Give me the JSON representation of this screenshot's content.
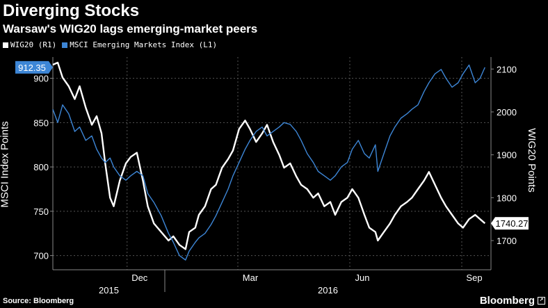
{
  "header": {
    "title": "Diverging Stocks",
    "subtitle": "Warsaw's WIG20 lags emerging-market peers"
  },
  "legend": {
    "items": [
      {
        "label": "WIG20 (R1)",
        "color": "#ffffff"
      },
      {
        "label": "MSCI Emerging Markets Index (L1)",
        "color": "#3d86d6"
      }
    ]
  },
  "footer": {
    "source": "Source: Bloomberg",
    "brand": "Bloomberg",
    "brand_icon": "bloomberg-terminal-icon"
  },
  "chart_data": {
    "type": "line",
    "left_axis": {
      "label": "MSCI Index Points",
      "ticks": [
        700,
        750,
        800,
        850,
        900
      ],
      "range": [
        684,
        924
      ]
    },
    "right_axis": {
      "label": "WIG20 Points",
      "ticks": [
        1700,
        1800,
        1900,
        2000,
        2100
      ],
      "range": [
        1632,
        2128
      ]
    },
    "x_axis": {
      "month_labels": [
        "Dec",
        "Mar",
        "Jun",
        "Sep"
      ],
      "year_labels": [
        "2015",
        "2016"
      ],
      "range": [
        "2015-10-01",
        "2016-09-25"
      ]
    },
    "grid": true,
    "series": [
      {
        "name": "WIG20",
        "axis": "right",
        "color": "#ffffff",
        "last_value_label": "1740.27",
        "points": [
          [
            "2015-10-01",
            2110
          ],
          [
            "2015-10-05",
            2115
          ],
          [
            "2015-10-09",
            2080
          ],
          [
            "2015-10-14",
            2060
          ],
          [
            "2015-10-19",
            2030
          ],
          [
            "2015-10-23",
            2060
          ],
          [
            "2015-10-28",
            2010
          ],
          [
            "2015-11-02",
            1970
          ],
          [
            "2015-11-06",
            1990
          ],
          [
            "2015-11-10",
            1950
          ],
          [
            "2015-11-13",
            1880
          ],
          [
            "2015-11-17",
            1800
          ],
          [
            "2015-11-20",
            1780
          ],
          [
            "2015-11-25",
            1840
          ],
          [
            "2015-11-30",
            1880
          ],
          [
            "2015-12-04",
            1895
          ],
          [
            "2015-12-09",
            1905
          ],
          [
            "2015-12-14",
            1840
          ],
          [
            "2015-12-18",
            1780
          ],
          [
            "2015-12-23",
            1740
          ],
          [
            "2015-12-29",
            1720
          ],
          [
            "2016-01-04",
            1700
          ],
          [
            "2016-01-08",
            1710
          ],
          [
            "2016-01-13",
            1690
          ],
          [
            "2016-01-18",
            1680
          ],
          [
            "2016-01-21",
            1720
          ],
          [
            "2016-01-26",
            1730
          ],
          [
            "2016-01-29",
            1760
          ],
          [
            "2016-02-03",
            1780
          ],
          [
            "2016-02-08",
            1820
          ],
          [
            "2016-02-12",
            1830
          ],
          [
            "2016-02-17",
            1870
          ],
          [
            "2016-02-22",
            1890
          ],
          [
            "2016-02-26",
            1910
          ],
          [
            "2016-03-02",
            1960
          ],
          [
            "2016-03-07",
            1980
          ],
          [
            "2016-03-11",
            1960
          ],
          [
            "2016-03-16",
            1930
          ],
          [
            "2016-03-21",
            1950
          ],
          [
            "2016-03-25",
            1970
          ],
          [
            "2016-03-30",
            1930
          ],
          [
            "2016-04-04",
            1900
          ],
          [
            "2016-04-08",
            1870
          ],
          [
            "2016-04-13",
            1880
          ],
          [
            "2016-04-18",
            1850
          ],
          [
            "2016-04-22",
            1830
          ],
          [
            "2016-04-27",
            1820
          ],
          [
            "2016-05-02",
            1800
          ],
          [
            "2016-05-06",
            1810
          ],
          [
            "2016-05-11",
            1780
          ],
          [
            "2016-05-16",
            1790
          ],
          [
            "2016-05-20",
            1760
          ],
          [
            "2016-05-25",
            1790
          ],
          [
            "2016-05-30",
            1800
          ],
          [
            "2016-06-03",
            1820
          ],
          [
            "2016-06-08",
            1800
          ],
          [
            "2016-06-13",
            1760
          ],
          [
            "2016-06-17",
            1730
          ],
          [
            "2016-06-22",
            1720
          ],
          [
            "2016-06-24",
            1700
          ],
          [
            "2016-06-29",
            1720
          ],
          [
            "2016-07-04",
            1740
          ],
          [
            "2016-07-08",
            1760
          ],
          [
            "2016-07-13",
            1780
          ],
          [
            "2016-07-18",
            1790
          ],
          [
            "2016-07-22",
            1800
          ],
          [
            "2016-07-27",
            1820
          ],
          [
            "2016-08-01",
            1840
          ],
          [
            "2016-08-05",
            1860
          ],
          [
            "2016-08-10",
            1830
          ],
          [
            "2016-08-15",
            1800
          ],
          [
            "2016-08-19",
            1780
          ],
          [
            "2016-08-24",
            1760
          ],
          [
            "2016-08-29",
            1740
          ],
          [
            "2016-09-02",
            1730
          ],
          [
            "2016-09-07",
            1750
          ],
          [
            "2016-09-12",
            1760
          ],
          [
            "2016-09-16",
            1750
          ],
          [
            "2016-09-20",
            1740.27
          ]
        ]
      },
      {
        "name": "MSCI Emerging Markets Index",
        "axis": "left",
        "color": "#3d86d6",
        "last_value_label": "912.35",
        "points": [
          [
            "2015-10-01",
            865
          ],
          [
            "2015-10-05",
            850
          ],
          [
            "2015-10-09",
            870
          ],
          [
            "2015-10-14",
            860
          ],
          [
            "2015-10-19",
            840
          ],
          [
            "2015-10-23",
            845
          ],
          [
            "2015-10-28",
            830
          ],
          [
            "2015-11-02",
            835
          ],
          [
            "2015-11-06",
            820
          ],
          [
            "2015-11-10",
            810
          ],
          [
            "2015-11-13",
            805
          ],
          [
            "2015-11-17",
            810
          ],
          [
            "2015-11-20",
            800
          ],
          [
            "2015-11-25",
            790
          ],
          [
            "2015-11-30",
            785
          ],
          [
            "2015-12-04",
            790
          ],
          [
            "2015-12-09",
            795
          ],
          [
            "2015-12-14",
            790
          ],
          [
            "2015-12-18",
            770
          ],
          [
            "2015-12-23",
            760
          ],
          [
            "2015-12-29",
            745
          ],
          [
            "2016-01-04",
            725
          ],
          [
            "2016-01-08",
            715
          ],
          [
            "2016-01-13",
            700
          ],
          [
            "2016-01-18",
            695
          ],
          [
            "2016-01-21",
            705
          ],
          [
            "2016-01-26",
            715
          ],
          [
            "2016-01-29",
            720
          ],
          [
            "2016-02-03",
            725
          ],
          [
            "2016-02-08",
            735
          ],
          [
            "2016-02-12",
            745
          ],
          [
            "2016-02-17",
            760
          ],
          [
            "2016-02-22",
            775
          ],
          [
            "2016-02-26",
            790
          ],
          [
            "2016-03-02",
            805
          ],
          [
            "2016-03-07",
            820
          ],
          [
            "2016-03-11",
            830
          ],
          [
            "2016-03-16",
            840
          ],
          [
            "2016-03-21",
            845
          ],
          [
            "2016-03-25",
            835
          ],
          [
            "2016-03-30",
            840
          ],
          [
            "2016-04-04",
            845
          ],
          [
            "2016-04-08",
            850
          ],
          [
            "2016-04-13",
            848
          ],
          [
            "2016-04-18",
            840
          ],
          [
            "2016-04-22",
            830
          ],
          [
            "2016-04-27",
            815
          ],
          [
            "2016-05-02",
            805
          ],
          [
            "2016-05-06",
            795
          ],
          [
            "2016-05-11",
            790
          ],
          [
            "2016-05-16",
            785
          ],
          [
            "2016-05-20",
            790
          ],
          [
            "2016-05-25",
            800
          ],
          [
            "2016-05-30",
            805
          ],
          [
            "2016-06-03",
            820
          ],
          [
            "2016-06-08",
            830
          ],
          [
            "2016-06-13",
            815
          ],
          [
            "2016-06-17",
            810
          ],
          [
            "2016-06-22",
            825
          ],
          [
            "2016-06-24",
            795
          ],
          [
            "2016-06-29",
            815
          ],
          [
            "2016-07-04",
            835
          ],
          [
            "2016-07-08",
            845
          ],
          [
            "2016-07-13",
            855
          ],
          [
            "2016-07-18",
            860
          ],
          [
            "2016-07-22",
            865
          ],
          [
            "2016-07-27",
            870
          ],
          [
            "2016-08-01",
            885
          ],
          [
            "2016-08-05",
            895
          ],
          [
            "2016-08-10",
            905
          ],
          [
            "2016-08-15",
            910
          ],
          [
            "2016-08-19",
            900
          ],
          [
            "2016-08-24",
            890
          ],
          [
            "2016-08-29",
            895
          ],
          [
            "2016-09-02",
            905
          ],
          [
            "2016-09-07",
            915
          ],
          [
            "2016-09-12",
            895
          ],
          [
            "2016-09-16",
            900
          ],
          [
            "2016-09-20",
            912.35
          ]
        ]
      }
    ]
  }
}
